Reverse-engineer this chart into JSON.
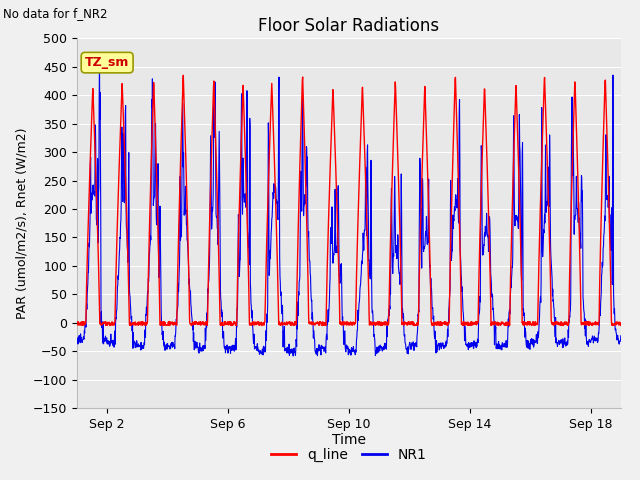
{
  "title": "Floor Solar Radiations",
  "no_data_text": "No data for f_NR2",
  "tz_label": "TZ_sm",
  "xlabel": "Time",
  "ylabel": "PAR (umol/m2/s), Rnet (W/m2)",
  "ylim": [
    -150,
    500
  ],
  "xlim": [
    0,
    18
  ],
  "yticks": [
    -150,
    -100,
    -50,
    0,
    50,
    100,
    150,
    200,
    250,
    300,
    350,
    400,
    450,
    500
  ],
  "xtick_labels": [
    "Sep 2",
    "Sep 6",
    "Sep 10",
    "Sep 14",
    "Sep 18"
  ],
  "xtick_positions": [
    1,
    5,
    9,
    13,
    17
  ],
  "red_color": "#ff0000",
  "blue_color": "#0000ee",
  "plot_bg": "#e8e8e8",
  "fig_bg": "#f0f0f0",
  "legend_entries": [
    "q_line",
    "NR1"
  ],
  "title_fontsize": 12,
  "axis_label_fontsize": 9,
  "tick_fontsize": 9,
  "tz_box_facecolor": "#ffff99",
  "tz_box_edgecolor": "#999900",
  "tz_text_color": "#cc0000",
  "n_days": 18,
  "pts_per_day": 96
}
